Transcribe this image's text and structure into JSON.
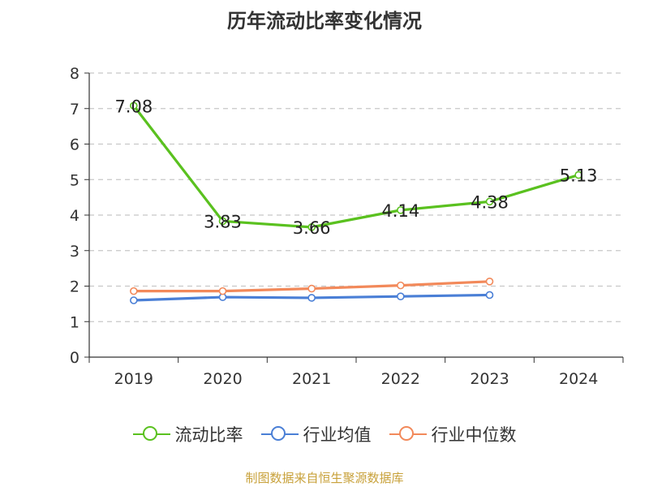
{
  "chart_data": {
    "type": "line",
    "title": "历年流动比率变化情况",
    "categories": [
      "2019",
      "2020",
      "2021",
      "2022",
      "2023",
      "2024"
    ],
    "ylim": [
      0,
      8
    ],
    "yticks": [
      "0",
      "1",
      "2",
      "3",
      "4",
      "5",
      "6",
      "7",
      "8"
    ],
    "grid": true,
    "legend_position": "bottom",
    "series": [
      {
        "name": "流动比率",
        "color": "#5ac11f",
        "values": [
          7.08,
          3.83,
          3.66,
          4.14,
          4.38,
          5.13
        ],
        "labels": [
          "7.08",
          "3.83",
          "3.66",
          "4.14",
          "4.38",
          "5.13"
        ]
      },
      {
        "name": "行业均值",
        "color": "#4a7fd6",
        "values": [
          1.6,
          1.69,
          1.67,
          1.71,
          1.75,
          null
        ]
      },
      {
        "name": "行业中位数",
        "color": "#f2895a",
        "values": [
          1.86,
          1.86,
          1.93,
          2.02,
          2.13,
          null
        ]
      }
    ]
  },
  "footer": {
    "source": "制图数据来自恒生聚源数据库"
  }
}
